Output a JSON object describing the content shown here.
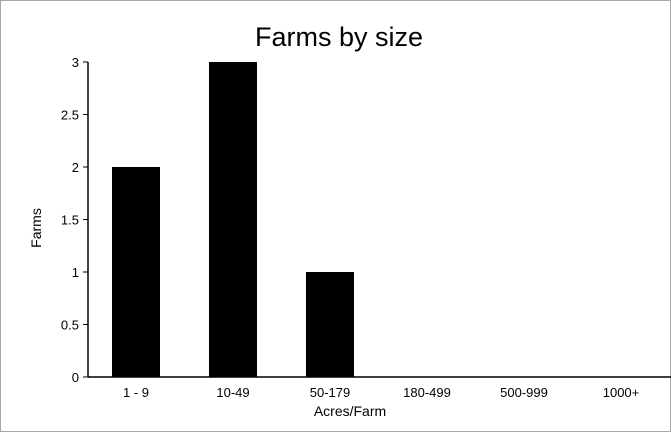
{
  "chart_data": {
    "type": "bar",
    "title": "Farms by size",
    "xlabel": "Acres/Farm",
    "ylabel": "Farms",
    "categories": [
      "1 - 9",
      "10-49",
      "50-179",
      "180-499",
      "500-999",
      "1000+"
    ],
    "values": [
      2,
      3,
      1,
      0,
      0,
      0
    ],
    "ylim": [
      0,
      3
    ],
    "yticks": [
      "0",
      "0.5",
      "1",
      "1.5",
      "2",
      "2.5",
      "3"
    ],
    "grid": false,
    "bar_color": "#000000"
  }
}
